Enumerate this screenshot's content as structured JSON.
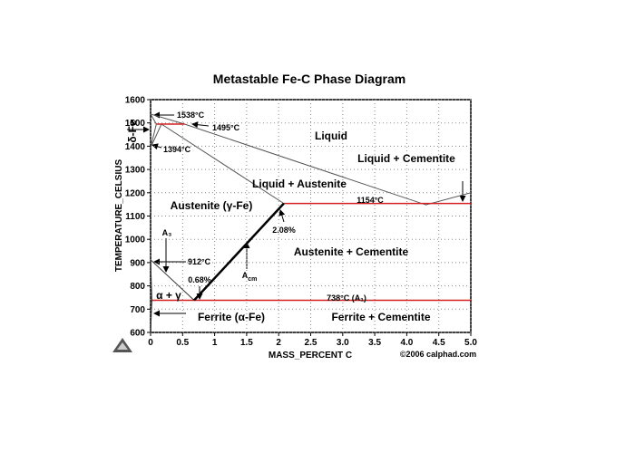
{
  "chart_data": {
    "type": "line",
    "title": "Metastable Fe-C Phase Diagram",
    "x_label": "MASS_PERCENT C",
    "y_label": "TEMPERATURE_CELSIUS",
    "xlim": [
      0,
      5
    ],
    "ylim": [
      600,
      1600
    ],
    "xticks": [
      0,
      0.5,
      {
        "value": 1,
        "label": "1"
      },
      1.5,
      2,
      2.5,
      {
        "value": 3,
        "label": "3.0"
      },
      3.5,
      {
        "value": 4,
        "label": "4.0"
      },
      4.5,
      {
        "value": 5,
        "label": "5.0"
      }
    ],
    "yticks": [
      600,
      700,
      800,
      900,
      1000,
      1100,
      1200,
      1300,
      1400,
      1500,
      1600
    ],
    "grid": true,
    "series": [
      {
        "color": "#555555",
        "linewidth": 1,
        "x": [
          0,
          0.53,
          4.3,
          5.0
        ],
        "values": [
          1538,
          1495,
          1148,
          1200
        ]
      },
      {
        "color": "#555555",
        "linewidth": 1,
        "x": [
          0,
          0.09
        ],
        "values": [
          1538,
          1495
        ]
      },
      {
        "color": "#555555",
        "linewidth": 1,
        "x": [
          0,
          0.09
        ],
        "values": [
          1394,
          1495
        ]
      },
      {
        "color": "#555555",
        "linewidth": 1,
        "x": [
          0,
          0.17
        ],
        "values": [
          1394,
          1495
        ]
      },
      {
        "color": "#555555",
        "linewidth": 1,
        "x": [
          0.17,
          2.08
        ],
        "values": [
          1495,
          1154
        ]
      },
      {
        "color": "#d42020",
        "linewidth": 1.5,
        "x": [
          0.09,
          0.53
        ],
        "values": [
          1495,
          1495
        ]
      },
      {
        "color": "#d42020",
        "linewidth": 1.5,
        "x": [
          2.08,
          5.0
        ],
        "values": [
          1154,
          1154
        ]
      },
      {
        "color": "#d42020",
        "linewidth": 1.5,
        "x": [
          0.02,
          5.0
        ],
        "values": [
          738,
          738
        ]
      },
      {
        "color": "#333333",
        "linewidth": 1,
        "x": [
          0,
          0.68
        ],
        "values": [
          912,
          738
        ]
      },
      {
        "color": "#000000",
        "linewidth": 2.5,
        "x": [
          0.68,
          2.08
        ],
        "values": [
          738,
          1154
        ]
      },
      {
        "color": "#333333",
        "linewidth": 1,
        "x": [
          0,
          0.02,
          0
        ],
        "values": [
          912,
          738,
          600
        ]
      }
    ],
    "annotations": [
      {
        "text": "1538°C"
      },
      {
        "text": "1495°C"
      },
      {
        "text": "1394°C"
      },
      {
        "text": "Liquid"
      },
      {
        "text": "Liquid + Cementite"
      },
      {
        "text": "Liquid + Austenite"
      },
      {
        "text": "1154°C"
      },
      {
        "text": "Austenite (γ-Fe)"
      },
      {
        "text": "2.08%"
      },
      {
        "text": "A₃"
      },
      {
        "text": "912°C"
      },
      {
        "text": "0.68%"
      },
      {
        "text": "A",
        "sub": "cm"
      },
      {
        "text": "Austenite + Cementite"
      },
      {
        "text": "α + γ"
      },
      {
        "text": "738°C (A₁)"
      },
      {
        "text": "Ferrite (α-Fe)"
      },
      {
        "text": "Ferrite + Cementite"
      },
      {
        "text": "δ-Fe"
      },
      {
        "text": "©2006 calphad.com"
      }
    ]
  }
}
